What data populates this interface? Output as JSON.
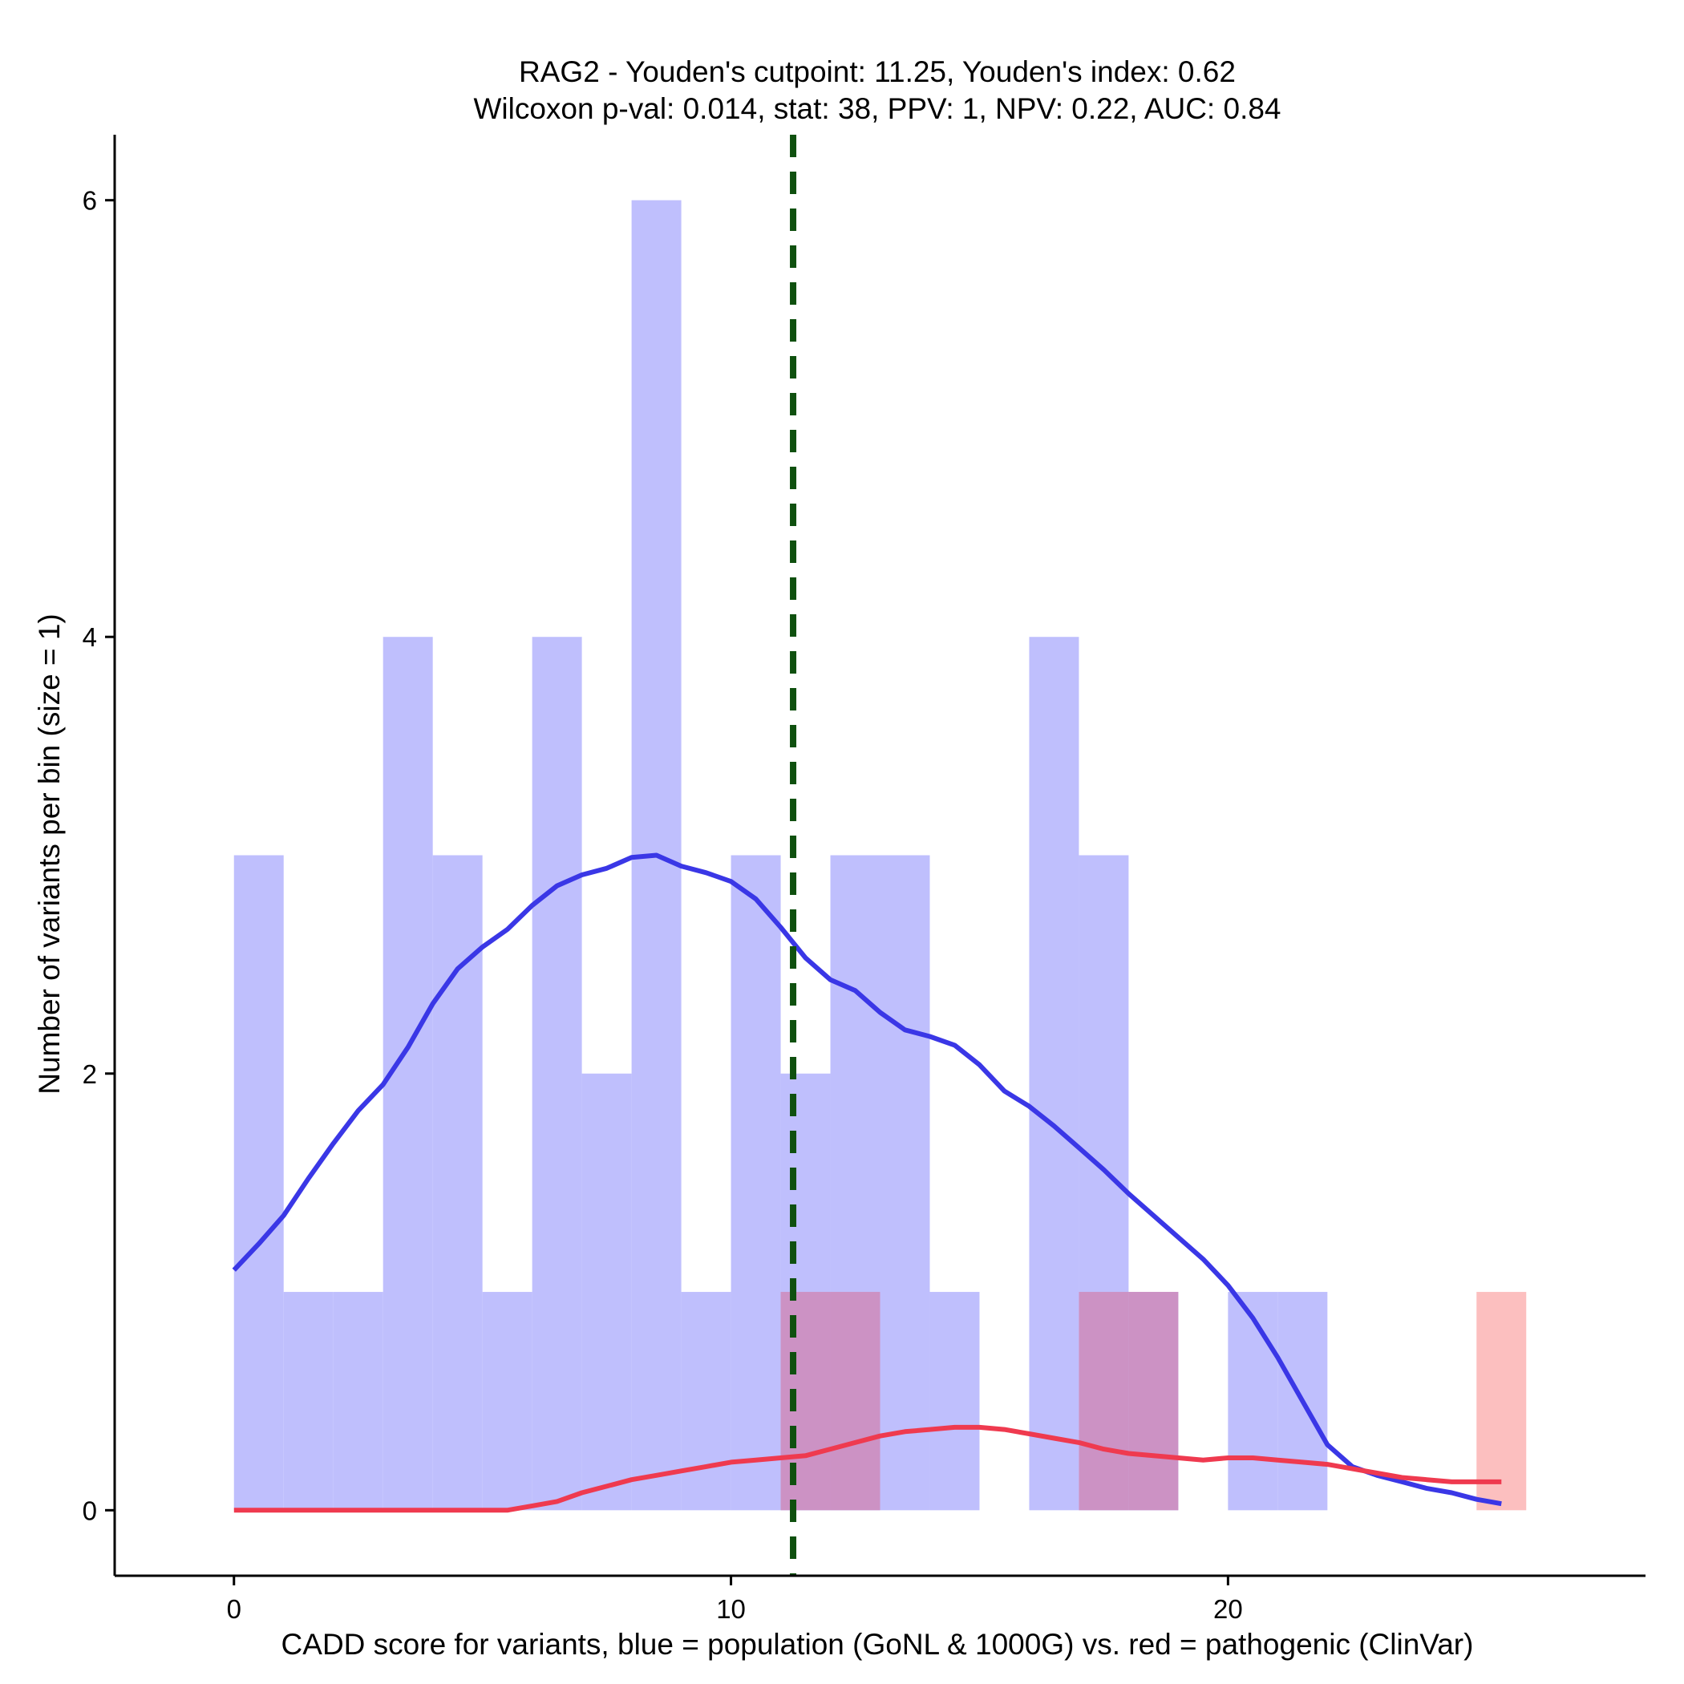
{
  "chart_data": {
    "type": "bar",
    "title": "RAG2 - Youden's cutpoint: 11.25, Youden's index: 0.62",
    "subtitle": "Wilcoxon p-val: 0.014, stat: 38, PPV: 1, NPV: 0.22, AUC: 0.84",
    "xlabel": "CADD score for variants, blue = population (GoNL & 1000G) vs. red = pathogenic (ClinVar)",
    "ylabel": "Number of variants per bin (size = 1)",
    "xlim": [
      -2.4,
      28.4
    ],
    "ylim": [
      -0.3,
      6.3
    ],
    "xticks": [
      0,
      10,
      20
    ],
    "yticks": [
      0,
      2,
      4,
      6
    ],
    "bin_width": 1,
    "grid": false,
    "cutpoint": 11.25,
    "colors": {
      "population_bar": "#bfbffd",
      "pathogenic_bar": "#fcbfbf",
      "overlap_bar": "#cc92c4",
      "population_line": "#3a37e6",
      "pathogenic_line": "#ef3a4f",
      "cutpoint_line": "#0f500f"
    },
    "series": [
      {
        "name": "population (GoNL & 1000G)",
        "bin_starts": [
          0,
          1,
          2,
          3,
          4,
          5,
          6,
          7,
          8,
          9,
          10,
          11,
          12,
          13,
          14,
          15,
          16,
          17,
          18,
          19,
          20,
          21,
          22,
          23,
          24,
          25
        ],
        "values": [
          3,
          1,
          1,
          4,
          3,
          1,
          4,
          2,
          6,
          1,
          3,
          2,
          3,
          3,
          1,
          0,
          4,
          3,
          1,
          0,
          1,
          1,
          0,
          0,
          0,
          0
        ]
      },
      {
        "name": "pathogenic (ClinVar)",
        "bin_starts": [
          0,
          1,
          2,
          3,
          4,
          5,
          6,
          7,
          8,
          9,
          10,
          11,
          12,
          13,
          14,
          15,
          16,
          17,
          18,
          19,
          20,
          21,
          22,
          23,
          24,
          25
        ],
        "values": [
          0,
          0,
          0,
          0,
          0,
          0,
          0,
          0,
          0,
          0,
          0,
          1,
          1,
          0,
          0,
          0,
          0,
          1,
          1,
          0,
          0,
          0,
          0,
          0,
          0,
          1
        ]
      }
    ],
    "density_curves": [
      {
        "name": "population density",
        "x": [
          0,
          0.5,
          1,
          1.5,
          2,
          2.5,
          3,
          3.5,
          4,
          4.5,
          5,
          5.5,
          6,
          6.5,
          7,
          7.5,
          8,
          8.5,
          9,
          9.5,
          10,
          10.5,
          11,
          11.5,
          12,
          12.5,
          13,
          13.5,
          14,
          14.5,
          15,
          15.5,
          16,
          16.5,
          17,
          17.5,
          18,
          18.5,
          19,
          19.5,
          20,
          20.5,
          21,
          21.5,
          22,
          22.5,
          23,
          23.5,
          24,
          24.5,
          25,
          25.5
        ],
        "y": [
          1.1,
          1.22,
          1.35,
          1.52,
          1.68,
          1.83,
          1.95,
          2.12,
          2.32,
          2.48,
          2.58,
          2.66,
          2.77,
          2.86,
          2.91,
          2.94,
          2.99,
          3.0,
          2.95,
          2.92,
          2.88,
          2.8,
          2.67,
          2.53,
          2.43,
          2.38,
          2.28,
          2.2,
          2.17,
          2.13,
          2.04,
          1.92,
          1.85,
          1.76,
          1.66,
          1.56,
          1.45,
          1.35,
          1.25,
          1.15,
          1.03,
          0.88,
          0.7,
          0.5,
          0.3,
          0.2,
          0.16,
          0.13,
          0.1,
          0.08,
          0.05,
          0.03
        ]
      },
      {
        "name": "pathogenic density",
        "x": [
          0,
          1,
          2,
          3,
          4,
          5,
          5.5,
          6,
          6.5,
          7,
          7.5,
          8,
          8.5,
          9,
          9.5,
          10,
          10.5,
          11,
          11.5,
          12,
          12.5,
          13,
          13.5,
          14,
          14.5,
          15,
          15.5,
          16,
          16.5,
          17,
          17.5,
          18,
          18.5,
          19,
          19.5,
          20,
          20.5,
          21,
          21.5,
          22,
          22.5,
          23,
          23.5,
          24,
          24.5,
          25,
          25.5
        ],
        "y": [
          0,
          0,
          0,
          0,
          0,
          0,
          0.0,
          0.02,
          0.04,
          0.08,
          0.11,
          0.14,
          0.16,
          0.18,
          0.2,
          0.22,
          0.23,
          0.24,
          0.25,
          0.28,
          0.31,
          0.34,
          0.36,
          0.37,
          0.38,
          0.38,
          0.37,
          0.35,
          0.33,
          0.31,
          0.28,
          0.26,
          0.25,
          0.24,
          0.23,
          0.24,
          0.24,
          0.23,
          0.22,
          0.21,
          0.19,
          0.17,
          0.15,
          0.14,
          0.13,
          0.13,
          0.13
        ]
      }
    ]
  }
}
